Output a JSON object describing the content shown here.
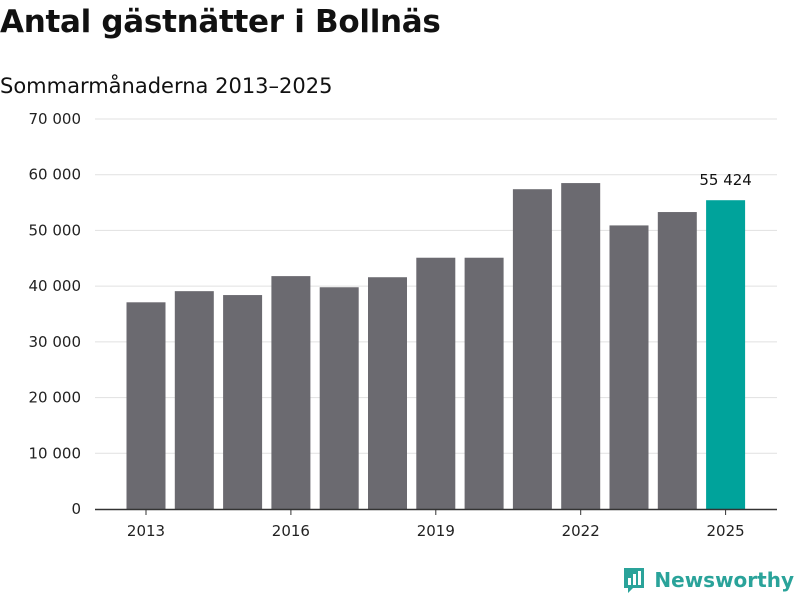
{
  "title": "Antal gästnätter i Bollnäs",
  "subtitle": "Sommarmånaderna 2013–2025",
  "brand": {
    "name": "Newsworthy",
    "icon": "newsworthy-logo-icon"
  },
  "colors": {
    "bar": "#6b6a70",
    "highlight": "#00a39b",
    "grid": "#e1e1e1",
    "axis": "#333333",
    "brand": "#2aa39a"
  },
  "chart_data": {
    "type": "bar",
    "categories": [
      "2013",
      "2014",
      "2015",
      "2016",
      "2017",
      "2018",
      "2019",
      "2020",
      "2021",
      "2022",
      "2023",
      "2024",
      "2025"
    ],
    "values": [
      37100,
      39100,
      38400,
      41800,
      39800,
      41600,
      45100,
      45100,
      57400,
      58500,
      50900,
      53300,
      55424
    ],
    "highlight_index": 12,
    "data_labels": [
      {
        "index": 12,
        "text": "55 424"
      }
    ],
    "x_tick_labels": [
      "2013",
      "2016",
      "2019",
      "2022",
      "2025"
    ],
    "y_ticks": [
      0,
      10000,
      20000,
      30000,
      40000,
      50000,
      60000,
      70000
    ],
    "y_tick_labels": [
      "0",
      "10 000",
      "20 000",
      "30 000",
      "40 000",
      "50 000",
      "60 000",
      "70 000"
    ],
    "ylim": [
      0,
      70000
    ],
    "grid": true,
    "legend": "none",
    "xlabel": "",
    "ylabel": ""
  }
}
